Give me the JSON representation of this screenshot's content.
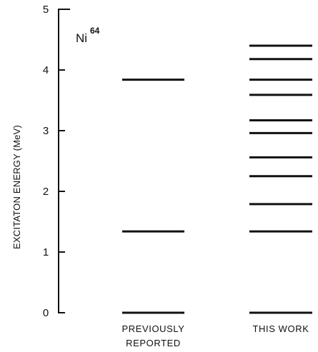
{
  "chart_data": {
    "type": "level-diagram",
    "ylabel": "EXCITATON ENERGY (MeV)",
    "ylim": [
      0,
      5
    ],
    "yticks": [
      "0",
      "1",
      "2",
      "3",
      "4",
      "5"
    ],
    "nucleus": {
      "symbol": "Ni",
      "mass": "64"
    },
    "columns": [
      {
        "label_lines": [
          "PREVIOUSLY",
          "REPORTED"
        ],
        "levels": [
          0,
          1.34,
          3.84
        ]
      },
      {
        "label_lines": [
          "THIS WORK"
        ],
        "levels": [
          0,
          1.34,
          1.79,
          2.25,
          2.56,
          2.96,
          3.17,
          3.59,
          3.84,
          4.18,
          4.4
        ]
      }
    ]
  }
}
